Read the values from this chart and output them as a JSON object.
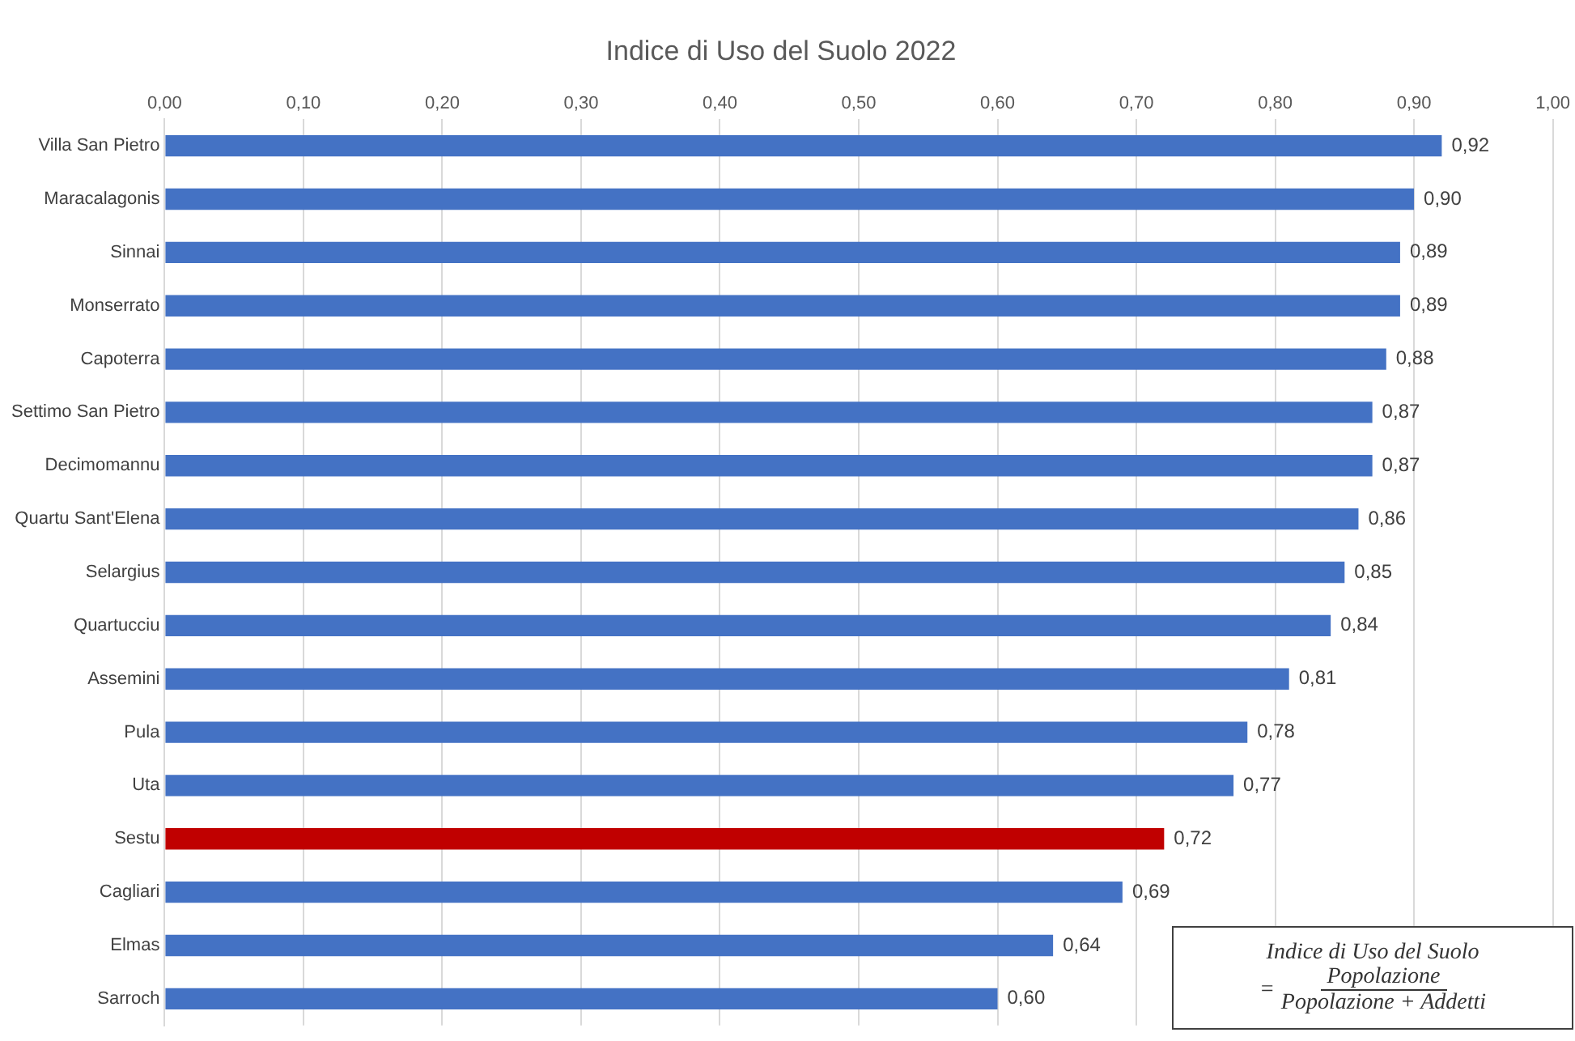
{
  "chart_data": {
    "type": "bar",
    "orientation": "horizontal",
    "title": "Indice di Uso del Suolo 2022",
    "categories": [
      "Villa San Pietro",
      "Maracalagonis",
      "Sinnai",
      "Monserrato",
      "Capoterra",
      "Settimo San Pietro",
      "Decimomannu",
      "Quartu Sant'Elena",
      "Selargius",
      "Quartucciu",
      "Assemini",
      "Pula",
      "Uta",
      "Sestu",
      "Cagliari",
      "Elmas",
      "Sarroch"
    ],
    "values": [
      0.92,
      0.9,
      0.89,
      0.89,
      0.88,
      0.87,
      0.87,
      0.86,
      0.85,
      0.84,
      0.81,
      0.78,
      0.77,
      0.72,
      0.69,
      0.64,
      0.6
    ],
    "value_labels": [
      "0,92",
      "0,90",
      "0,89",
      "0,89",
      "0,88",
      "0,87",
      "0,87",
      "0,86",
      "0,85",
      "0,84",
      "0,81",
      "0,78",
      "0,77",
      "0,72",
      "0,69",
      "0,64",
      "0,60"
    ],
    "colors": [
      "#4472c4",
      "#4472c4",
      "#4472c4",
      "#4472c4",
      "#4472c4",
      "#4472c4",
      "#4472c4",
      "#4472c4",
      "#4472c4",
      "#4472c4",
      "#4472c4",
      "#4472c4",
      "#4472c4",
      "#c00000",
      "#4472c4",
      "#4472c4",
      "#4472c4"
    ],
    "xlim": [
      0,
      1
    ],
    "xticks": [
      {
        "value": 0,
        "label": "0,00"
      },
      {
        "value": 0.1,
        "label": "0,10"
      },
      {
        "value": 0.2,
        "label": "0,20"
      },
      {
        "value": 0.3,
        "label": "0,30"
      },
      {
        "value": 0.4,
        "label": "0,40"
      },
      {
        "value": 0.5,
        "label": "0,50"
      },
      {
        "value": 0.6,
        "label": "0,60"
      },
      {
        "value": 0.7,
        "label": "0,70"
      },
      {
        "value": 0.8,
        "label": "0,80"
      },
      {
        "value": 0.9,
        "label": "0,90"
      },
      {
        "value": 1,
        "label": "1,00"
      }
    ],
    "grid": "x",
    "legend": false,
    "annotations": [
      "Indice di Uso del Suolo",
      "=",
      "Popolazione",
      "Popolazione + Addetti"
    ]
  }
}
